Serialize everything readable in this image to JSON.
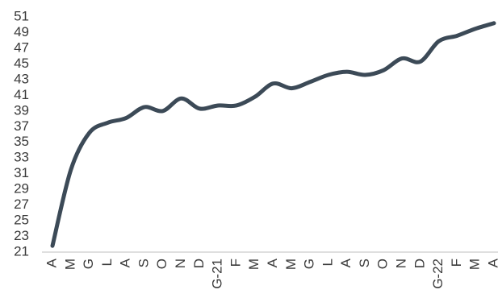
{
  "chart_data": {
    "type": "line",
    "categories": [
      "A",
      "M",
      "G",
      "L",
      "A",
      "S",
      "O",
      "N",
      "D",
      "G-21",
      "F",
      "M",
      "A",
      "M",
      "G",
      "L",
      "A",
      "S",
      "O",
      "N",
      "D",
      "G-22",
      "F",
      "M",
      "A"
    ],
    "series": [
      {
        "color": "#3c4a57",
        "values": [
          21.8,
          31.5,
          36.2,
          37.5,
          38.1,
          39.5,
          39.0,
          40.6,
          39.3,
          39.7,
          39.7,
          40.8,
          42.5,
          41.9,
          42.7,
          43.6,
          44.0,
          43.6,
          44.2,
          45.7,
          45.3,
          47.9,
          48.6,
          49.5,
          50.2
        ]
      }
    ],
    "ylim": [
      21,
      51
    ],
    "yticks": [
      21,
      23,
      25,
      27,
      29,
      31,
      33,
      35,
      37,
      39,
      41,
      43,
      45,
      47,
      49,
      51
    ]
  }
}
